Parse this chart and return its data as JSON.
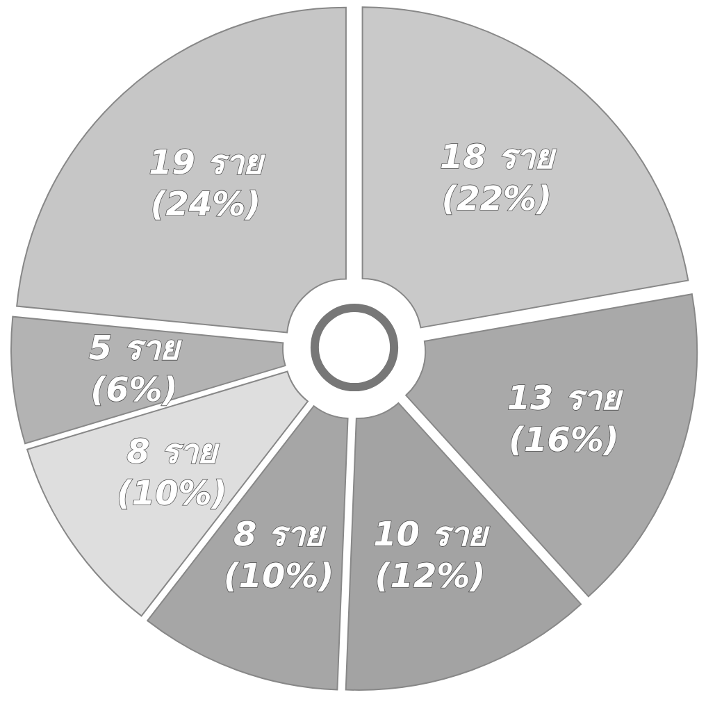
{
  "chart_data": {
    "type": "donut",
    "categories": [
      null,
      null,
      null,
      null,
      null,
      null,
      null
    ],
    "values": [
      18,
      13,
      10,
      8,
      8,
      5,
      19
    ],
    "value_labels": [
      "18 ราย (22%)",
      "13 ราย (16%)",
      "10 ราย (12%)",
      "8 ราย (10%)",
      "8 ราย (10%)",
      "5 ราย (6%)",
      "19 ราย (24%)"
    ],
    "colors": [
      "#c9c9c9",
      "#a9a9a9",
      "#a3a3a3",
      "#a6a6a6",
      "#dedede",
      "#b3b3b3",
      "#c6c6c6"
    ]
  }
}
